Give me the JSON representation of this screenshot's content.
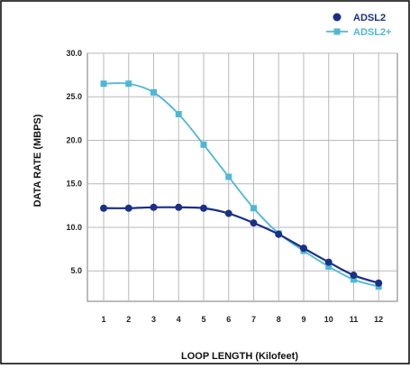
{
  "chart_data": {
    "type": "line",
    "xlabel": "LOOP LENGTH (Kilofeet)",
    "ylabel": "DATA RATE (MBPS)",
    "x": [
      1,
      2,
      3,
      4,
      5,
      6,
      7,
      8,
      9,
      10,
      11,
      12
    ],
    "x_ticks": [
      "1",
      "2",
      "3",
      "4",
      "5",
      "6",
      "7",
      "8",
      "9",
      "10",
      "11",
      "12"
    ],
    "y_ticks": [
      "5.0",
      "10.0",
      "15.0",
      "20.0",
      "25.0",
      "30.0"
    ],
    "y_tick_values": [
      5,
      10,
      15,
      20,
      25,
      30
    ],
    "xlim": [
      0.35,
      12.75
    ],
    "ylim": [
      1.5,
      30
    ],
    "grid": true,
    "legend_position": "top-right",
    "series": [
      {
        "name": "ADSL2",
        "marker": "circle",
        "color": "#1a2f86",
        "values": [
          12.2,
          12.2,
          12.3,
          12.3,
          12.2,
          11.6,
          10.5,
          9.2,
          7.6,
          6.0,
          4.5,
          3.6
        ]
      },
      {
        "name": "ADSL2+",
        "marker": "square",
        "color": "#4db8d6",
        "values": [
          26.5,
          26.5,
          25.5,
          23.0,
          19.5,
          15.8,
          12.2,
          9.3,
          7.3,
          5.5,
          4.0,
          3.2
        ]
      }
    ]
  }
}
